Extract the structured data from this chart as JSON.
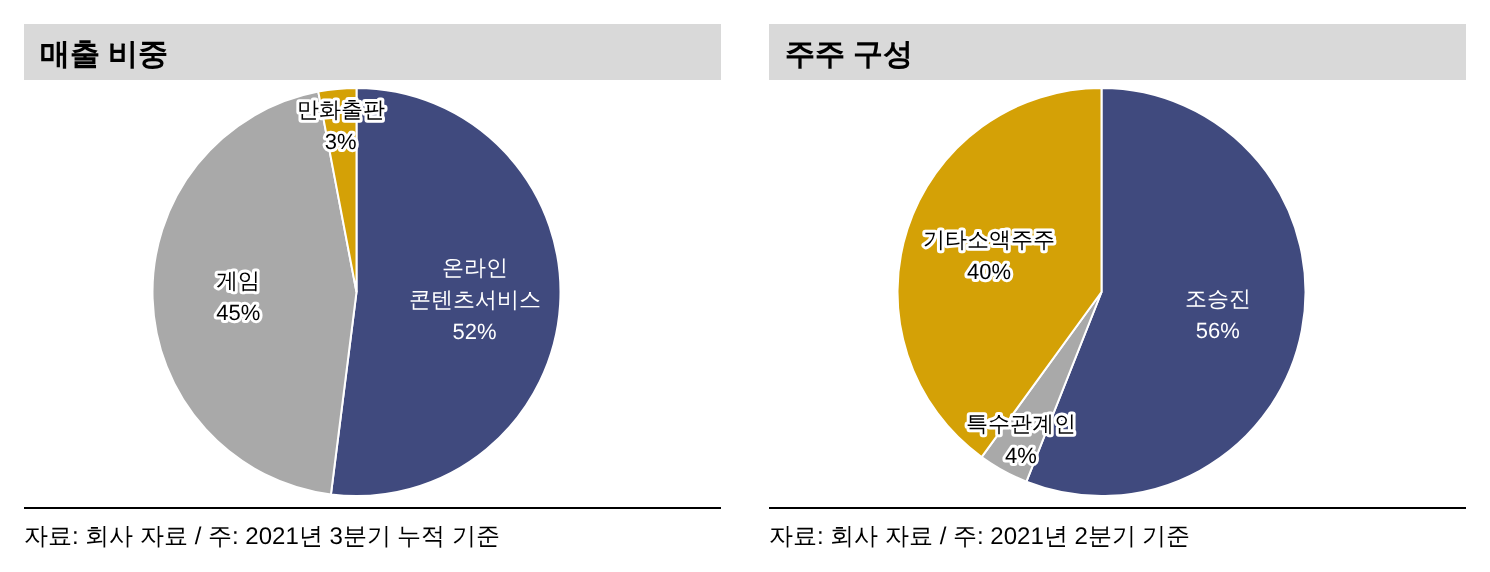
{
  "chart_data": [
    {
      "type": "pie",
      "title": "매출 비중",
      "categories": [
        "온라인 콘텐츠서비스",
        "게임",
        "만화출판"
      ],
      "values": [
        52,
        45,
        3
      ],
      "colors": [
        "#404a7e",
        "#a9a9a9",
        "#d4a106"
      ],
      "value_labels": [
        "52%",
        "45%",
        "3%"
      ],
      "annotations": [
        "자료: 회사 자료 / 주: 2021년 3분기 누적 기준"
      ]
    },
    {
      "type": "pie",
      "title": "주주 구성",
      "categories": [
        "조승진",
        "특수관계인",
        "기타소액주주"
      ],
      "values": [
        56,
        4,
        40
      ],
      "colors": [
        "#404a7e",
        "#a9a9a9",
        "#d4a106"
      ],
      "value_labels": [
        "56%",
        "4%",
        "40%"
      ],
      "annotations": [
        "자료: 회사 자료 / 주: 2021년 2분기 기준"
      ]
    }
  ]
}
